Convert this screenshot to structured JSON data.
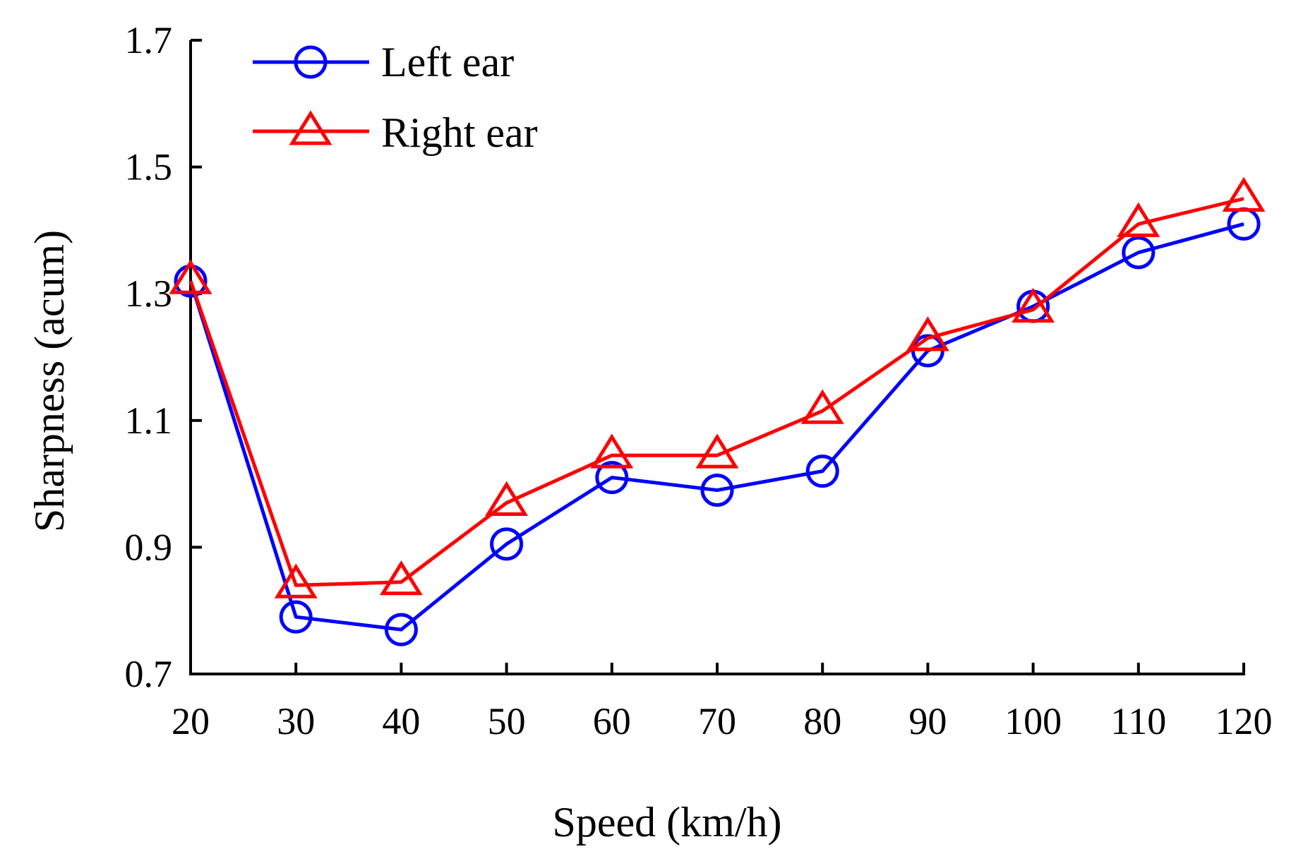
{
  "chart_data": {
    "type": "line",
    "title": "",
    "xlabel": "Speed (km/h)",
    "ylabel": "Sharpness (acum)",
    "x": [
      20,
      30,
      40,
      50,
      60,
      70,
      80,
      90,
      100,
      110,
      120
    ],
    "x_tick_labels": [
      "20",
      "30",
      "40",
      "50",
      "60",
      "70",
      "80",
      "90",
      "100",
      "110",
      "120"
    ],
    "xlim": [
      20,
      120
    ],
    "ylim": [
      0.7,
      1.7
    ],
    "y_ticks": [
      0.7,
      0.9,
      1.1,
      1.3,
      1.5,
      1.7
    ],
    "y_tick_labels": [
      "0.7",
      "0.9",
      "1.1",
      "1.3",
      "1.5",
      "1.7"
    ],
    "grid": false,
    "legend_position": "top-left",
    "series": [
      {
        "name": "Left ear",
        "color": "#0000ff",
        "marker": "circle",
        "values": [
          1.32,
          0.79,
          0.77,
          0.905,
          1.01,
          0.99,
          1.02,
          1.21,
          1.28,
          1.365,
          1.41
        ]
      },
      {
        "name": "Right ear",
        "color": "#ff0000",
        "marker": "triangle",
        "values": [
          1.32,
          0.84,
          0.845,
          0.97,
          1.045,
          1.045,
          1.115,
          1.23,
          1.275,
          1.41,
          1.45
        ]
      }
    ]
  }
}
